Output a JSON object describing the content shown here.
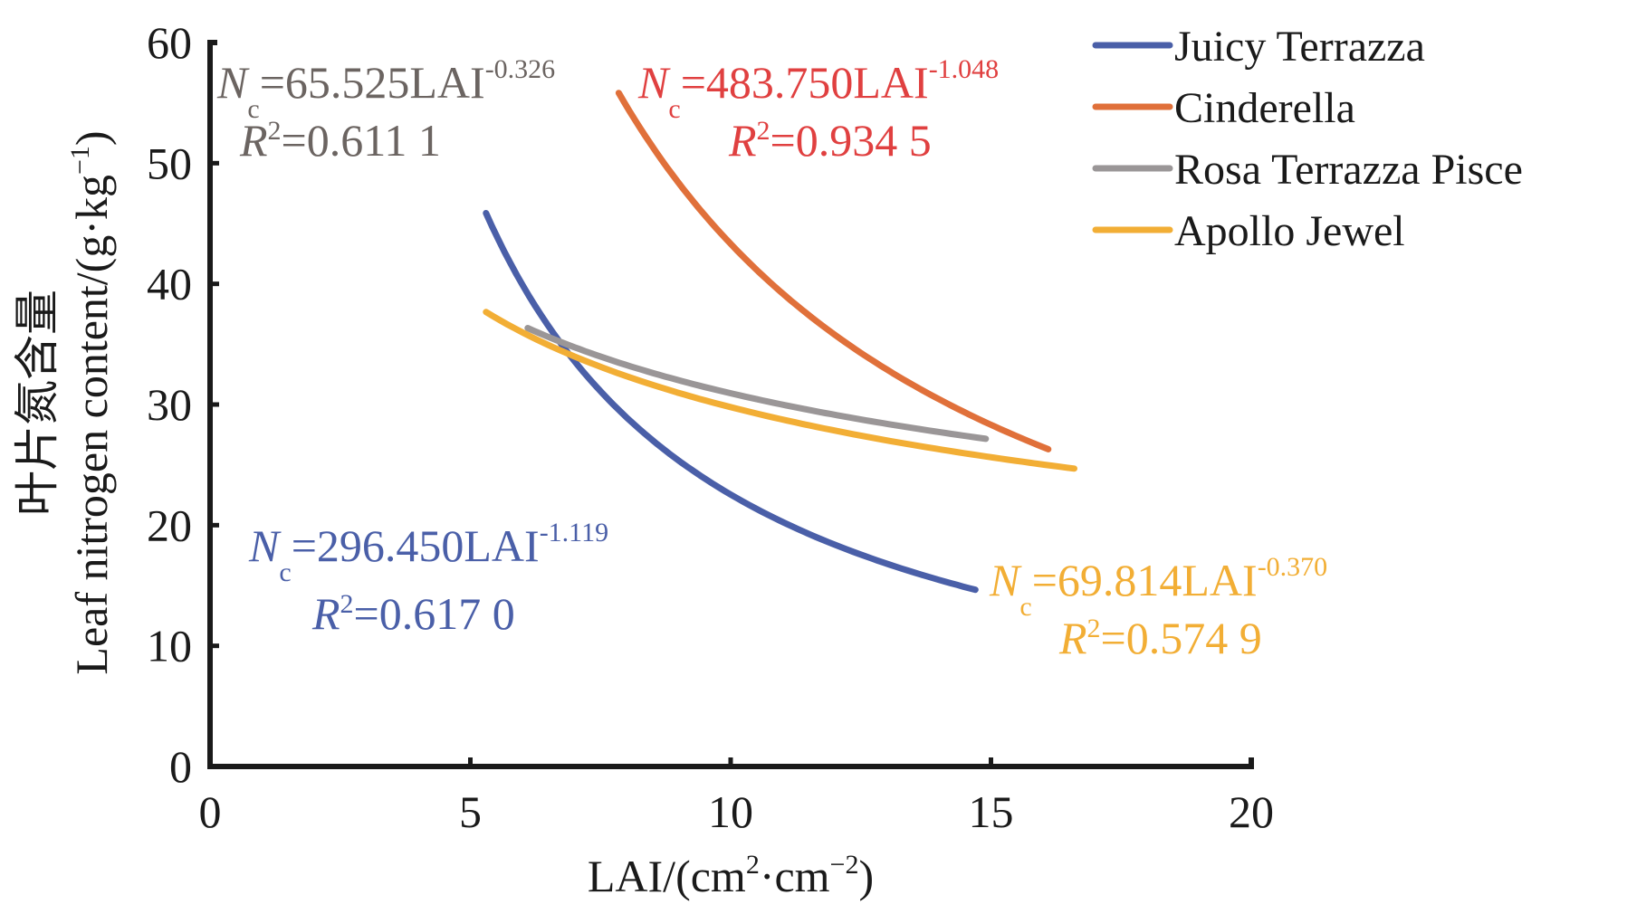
{
  "chart_data": {
    "type": "line",
    "title": "",
    "xlabel": "LAI/(cm²·cm⁻²)",
    "xlabel_parts": {
      "base": "LAI/(cm",
      "sup1": "2",
      "mid": "·cm",
      "sup2": "−2",
      "end": ")"
    },
    "ylabel_cn": "叶片氮含量",
    "ylabel_en": "Leaf nitrogen content/(g·kg",
    "ylabel_sup": "−1",
    "ylabel_end": ")",
    "xlim": [
      0,
      20
    ],
    "ylim": [
      0,
      60
    ],
    "xticks": [
      0,
      5,
      10,
      15,
      20
    ],
    "yticks": [
      0,
      10,
      20,
      30,
      40,
      50,
      60
    ],
    "grid": false,
    "legend_position": "top-right",
    "series": [
      {
        "name": "Juicy Terrazza",
        "color": "#4a5fa8",
        "a": 296.45,
        "b": -1.119,
        "x_range": [
          5.3,
          14.7
        ],
        "equation": {
          "coef": "=296.450LAI",
          "exp": "-1.119",
          "r2": "=0.617 0"
        }
      },
      {
        "name": "Cinderella",
        "color": "#e0703a",
        "a": 483.75,
        "b": -1.048,
        "x_range": [
          7.85,
          16.1
        ],
        "equation": {
          "coef": "=483.750LAI",
          "exp": "-1.048",
          "r2": "=0.934 5"
        },
        "label_color": "#e04040"
      },
      {
        "name": "Rosa Terrazza Pisce",
        "color": "#9a9697",
        "a": 65.525,
        "b": -0.326,
        "x_range": [
          6.1,
          14.9
        ],
        "equation": {
          "coef": "=65.525LAI",
          "exp": "-0.326",
          "r2": "=0.611 1"
        },
        "label_color": "#6b6461"
      },
      {
        "name": "Apollo Jewel",
        "color": "#f2ae35",
        "a": 69.814,
        "b": -0.37,
        "x_range": [
          5.3,
          16.6
        ],
        "equation": {
          "coef": "=69.814LAI",
          "exp": "-0.370",
          "r2": "=0.574 9"
        }
      }
    ],
    "equation_symbol": {
      "N": "N",
      "sub": "c",
      "R": "R",
      "R_sup": "2"
    }
  }
}
